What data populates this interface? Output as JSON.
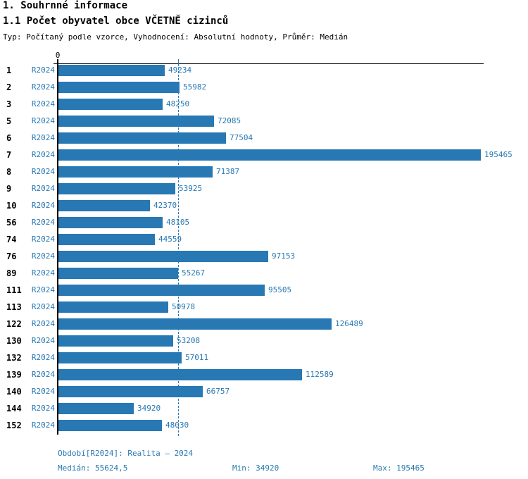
{
  "header": {
    "title": "1. Souhrnné informace",
    "subtitle": "1.1 Počet obyvatel obce VČETNĚ cizinců",
    "meta": "Typ: Počítaný podle vzorce, Vyhodnocení: Absolutní hodnoty, Průměr: Medián"
  },
  "colors": {
    "bar": "#2878b4",
    "blue_text": "#2878b4",
    "axis": "#000000"
  },
  "chart_data": {
    "type": "bar",
    "orientation": "horizontal",
    "title": "1.1 Počet obyvatel obce VČETNĚ cizinců",
    "series_label": "R2024",
    "axis_origin_label": "0",
    "xlim": [
      0,
      195465
    ],
    "grid": false,
    "median_value": 55624.5,
    "median_line": true,
    "rows": [
      {
        "id": "1",
        "series": "R2024",
        "value": 49234
      },
      {
        "id": "2",
        "series": "R2024",
        "value": 55982
      },
      {
        "id": "3",
        "series": "R2024",
        "value": 48250
      },
      {
        "id": "5",
        "series": "R2024",
        "value": 72085
      },
      {
        "id": "6",
        "series": "R2024",
        "value": 77504
      },
      {
        "id": "7",
        "series": "R2024",
        "value": 195465
      },
      {
        "id": "8",
        "series": "R2024",
        "value": 71387
      },
      {
        "id": "9",
        "series": "R2024",
        "value": 53925
      },
      {
        "id": "10",
        "series": "R2024",
        "value": 42370
      },
      {
        "id": "56",
        "series": "R2024",
        "value": 48105
      },
      {
        "id": "74",
        "series": "R2024",
        "value": 44559
      },
      {
        "id": "76",
        "series": "R2024",
        "value": 97153
      },
      {
        "id": "89",
        "series": "R2024",
        "value": 55267
      },
      {
        "id": "111",
        "series": "R2024",
        "value": 95505
      },
      {
        "id": "113",
        "series": "R2024",
        "value": 50978
      },
      {
        "id": "122",
        "series": "R2024",
        "value": 126489
      },
      {
        "id": "130",
        "series": "R2024",
        "value": 53208
      },
      {
        "id": "132",
        "series": "R2024",
        "value": 57011
      },
      {
        "id": "139",
        "series": "R2024",
        "value": 112589
      },
      {
        "id": "140",
        "series": "R2024",
        "value": 66757
      },
      {
        "id": "144",
        "series": "R2024",
        "value": 34920
      },
      {
        "id": "152",
        "series": "R2024",
        "value": 48030
      }
    ]
  },
  "footer": {
    "period": "Období[R2024]: Realita – 2024",
    "median": "Medián: 55624,5",
    "min": "Min: 34920",
    "max": "Max: 195465"
  }
}
